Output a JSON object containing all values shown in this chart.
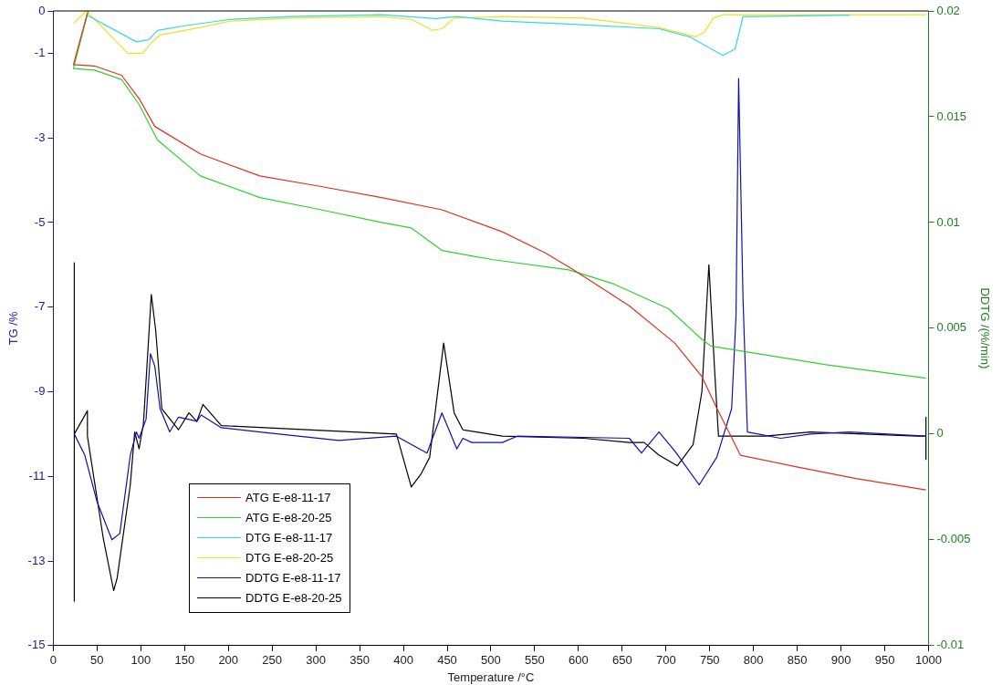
{
  "chart_data": {
    "type": "line",
    "xlabel": "Temperature /°C",
    "ylabel": "TG /%",
    "y2label": "DDTG /(%/min)",
    "xlim": [
      0,
      1000
    ],
    "xticks": [
      0,
      50,
      100,
      150,
      200,
      250,
      300,
      350,
      400,
      450,
      500,
      550,
      600,
      650,
      700,
      750,
      800,
      850,
      900,
      950,
      1000
    ],
    "ylim": [
      -15,
      0
    ],
    "yticks": [
      -15,
      -13,
      -11,
      -9,
      -7,
      -5,
      -3,
      -1,
      0
    ],
    "y2lim": [
      -0.01,
      0.02
    ],
    "y2ticks": [
      -0.01,
      -0.005,
      0,
      0.005,
      0.01,
      0.015,
      0.02
    ],
    "legend": "bottom left",
    "marker": "none",
    "line_style": "solid",
    "series": [
      {
        "name": "ATG E-e8-11-17",
        "color": "#e03020",
        "x": [
          39,
          23,
          47,
          78,
          98,
          116,
          168,
          236,
          306,
          375,
          444,
          513,
          562,
          593,
          658,
          710,
          741,
          758,
          772,
          785,
          848,
          917,
          997
        ],
        "values": [
          -0.05,
          -1.27,
          -1.3,
          -1.52,
          -2.07,
          -2.73,
          -3.38,
          -3.9,
          -4.15,
          -4.41,
          -4.7,
          -5.22,
          -5.72,
          -6.1,
          -6.97,
          -7.85,
          -8.64,
          -9.39,
          -9.96,
          -10.5,
          -10.77,
          -11.05,
          -11.32
        ]
      },
      {
        "name": "ATG E-e8-20-25",
        "color": "#30d030",
        "x": [
          40,
          23,
          47,
          78,
          98,
          119,
          168,
          236,
          306,
          375,
          409,
          444,
          478,
          503,
          589,
          640,
          703,
          741,
          751,
          796,
          883,
          997
        ],
        "values": [
          0,
          -1.36,
          -1.4,
          -1.62,
          -2.21,
          -3.05,
          -3.9,
          -4.41,
          -4.7,
          -5.0,
          -5.13,
          -5.66,
          -5.79,
          -5.88,
          -6.12,
          -6.45,
          -7.04,
          -7.76,
          -7.92,
          -8.07,
          -8.36,
          -8.68
        ]
      },
      {
        "name": "DTG E-e8-11-17",
        "color": "#30d8e8",
        "x": [
          38,
          95,
          109,
          119,
          150,
          202,
          271,
          375,
          437,
          461,
          513,
          589,
          692,
          727,
          765,
          779,
          788,
          800,
          910
        ],
        "values": [
          -0.09,
          -0.73,
          -0.68,
          -0.46,
          -0.35,
          -0.2,
          -0.13,
          -0.09,
          -0.18,
          -0.13,
          -0.24,
          -0.31,
          -0.42,
          -0.61,
          -1.05,
          -0.9,
          -0.13,
          -0.13,
          -0.1
        ]
      },
      {
        "name": "DTG E-e8-20-25",
        "color": "#f0e020",
        "x": [
          23,
          38,
          85,
          102,
          112,
          122,
          168,
          202,
          271,
          375,
          409,
          433,
          444,
          458,
          513,
          606,
          692,
          734,
          744,
          754,
          765,
          997
        ],
        "values": [
          -0.3,
          0,
          -1.0,
          -1.0,
          -0.75,
          -0.57,
          -0.39,
          -0.24,
          -0.17,
          -0.13,
          -0.2,
          -0.46,
          -0.42,
          -0.17,
          -0.13,
          -0.17,
          -0.39,
          -0.61,
          -0.5,
          -0.17,
          -0.09,
          -0.09
        ]
      },
      {
        "name": "DDTG E-e8-11-17",
        "color": "#1010b0",
        "axis": "y2",
        "x": [
          24,
          36,
          50,
          67,
          76,
          88,
          95,
          98,
          106,
          111,
          116,
          122,
          133,
          143,
          154,
          164,
          169,
          192,
          236,
          326,
          392,
          427,
          444,
          461,
          468,
          478,
          513,
          530,
          658,
          672,
          692,
          710,
          738,
          758,
          775,
          780,
          783,
          788,
          793,
          831,
          865,
          910,
          997
        ],
        "values": [
          0,
          -0.001,
          -0.0032,
          -0.005,
          -0.0047,
          -0.001,
          0.0001,
          -0.0002,
          0.0007,
          0.0038,
          0.0032,
          0.0012,
          0.0001,
          0.0008,
          0.0007,
          0.0006,
          0.0009,
          0.0003,
          0.0001,
          -0.0003,
          -0.0001,
          -0.0009,
          0.001,
          -0.0007,
          -0.0002,
          -0.0004,
          -0.0004,
          -0.0001,
          -0.0002,
          -0.0009,
          0.0001,
          -0.0008,
          -0.0024,
          -0.0011,
          0.0012,
          0.0056,
          0.0168,
          0.0064,
          0.0001,
          -0.0002,
          0,
          0.0001,
          -0.0001
        ]
      },
      {
        "name": "DDTG E-e8-20-25",
        "color": "#000000",
        "axis": "y2",
        "x": [
          24,
          24,
          24,
          39,
          39,
          57,
          69,
          73,
          88,
          93,
          98,
          103,
          112,
          117,
          124,
          143,
          155,
          164,
          171,
          192,
          392,
          409,
          420,
          430,
          446,
          458,
          468,
          513,
          606,
          658,
          675,
          692,
          713,
          731,
          741,
          749,
          756,
          760,
          813,
          865,
          987,
          997,
          997,
          997
        ],
        "values": [
          0.0081,
          -0.0079,
          0,
          0.0011,
          -0.0001,
          -0.0049,
          -0.0074,
          -0.0068,
          -0.0024,
          0.0001,
          -0.0007,
          0.0005,
          0.0066,
          0.0049,
          0.0012,
          0.0002,
          0.001,
          0.0006,
          0.0014,
          0.0004,
          0,
          -0.0025,
          -0.0019,
          -0.0011,
          0.0043,
          0.001,
          0.0002,
          -0.0001,
          -0.0002,
          -0.0004,
          -0.0004,
          -0.001,
          -0.0015,
          -0.0005,
          0.002,
          0.008,
          0.0027,
          -0.0001,
          -0.0001,
          0.0001,
          -0.0001,
          -0.0001,
          0.0008,
          -0.0012
        ]
      }
    ]
  }
}
